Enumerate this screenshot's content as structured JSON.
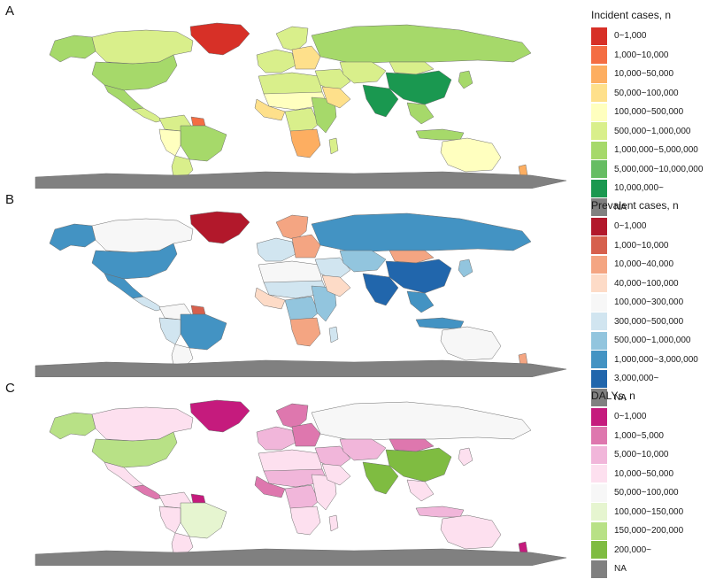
{
  "panels": [
    {
      "letter": "A",
      "legend_title": "Incident cases, n",
      "legend": [
        {
          "label": "0~1,000",
          "color": "#d73027"
        },
        {
          "label": "1,000~10,000",
          "color": "#f46d43"
        },
        {
          "label": "10,000~50,000",
          "color": "#fdae61"
        },
        {
          "label": "50,000~100,000",
          "color": "#fee08b"
        },
        {
          "label": "100,000~500,000",
          "color": "#ffffbf"
        },
        {
          "label": "500,000~1,000,000",
          "color": "#d9ef8b"
        },
        {
          "label": "1,000,000~5,000,000",
          "color": "#a6d96a"
        },
        {
          "label": "5,000,000~10,000,000",
          "color": "#66bd63"
        },
        {
          "label": "10,000,000~",
          "color": "#1a9850"
        },
        {
          "label": "NA",
          "color": "#808080"
        }
      ],
      "regions": {
        "greenland": "#d73027",
        "alaska": "#a6d96a",
        "canada": "#d9ef8b",
        "usa": "#a6d96a",
        "mexico": "#a6d96a",
        "central_am": "#d9ef8b",
        "north_sa": "#d9ef8b",
        "brazil": "#a6d96a",
        "west_sa": "#ffffbf",
        "argentina": "#d9ef8b",
        "guiana": "#f46d43",
        "scandinavia": "#d9ef8b",
        "w_europe": "#d9ef8b",
        "e_europe": "#fee08b",
        "russia": "#a6d96a",
        "n_africa": "#d9ef8b",
        "sahel": "#ffffbf",
        "w_africa": "#fee08b",
        "c_africa": "#d9ef8b",
        "e_africa": "#a6d96a",
        "s_africa": "#fdae61",
        "madagascar": "#d9ef8b",
        "middle_east": "#d9ef8b",
        "arabia": "#fee08b",
        "c_asia": "#d9ef8b",
        "india": "#1a9850",
        "china": "#1a9850",
        "mongolia": "#d9ef8b",
        "se_asia": "#a6d96a",
        "indonesia": "#a6d96a",
        "japan": "#a6d96a",
        "australia": "#ffffbf",
        "nz": "#fdae61",
        "antarctica": "#808080"
      }
    },
    {
      "letter": "B",
      "legend_title": "Prevalent cases, n",
      "legend": [
        {
          "label": "0~1,000",
          "color": "#b2182b"
        },
        {
          "label": "1,000~10,000",
          "color": "#d6604d"
        },
        {
          "label": "10,000~40,000",
          "color": "#f4a582"
        },
        {
          "label": "40,000~100,000",
          "color": "#fddbc7"
        },
        {
          "label": "100,000~300,000",
          "color": "#f7f7f7"
        },
        {
          "label": "300,000~500,000",
          "color": "#d1e5f0"
        },
        {
          "label": "500,000~1,000,000",
          "color": "#92c5de"
        },
        {
          "label": "1,000,000~3,000,000",
          "color": "#4393c3"
        },
        {
          "label": "3,000,000~",
          "color": "#2166ac"
        },
        {
          "label": "NA",
          "color": "#808080"
        }
      ],
      "regions": {
        "greenland": "#b2182b",
        "alaska": "#4393c3",
        "canada": "#f7f7f7",
        "usa": "#4393c3",
        "mexico": "#4393c3",
        "central_am": "#d1e5f0",
        "north_sa": "#f7f7f7",
        "brazil": "#4393c3",
        "west_sa": "#d1e5f0",
        "argentina": "#f7f7f7",
        "guiana": "#d6604d",
        "scandinavia": "#f4a582",
        "w_europe": "#d1e5f0",
        "e_europe": "#f4a582",
        "russia": "#4393c3",
        "n_africa": "#f7f7f7",
        "sahel": "#d1e5f0",
        "w_africa": "#fddbc7",
        "c_africa": "#92c5de",
        "e_africa": "#92c5de",
        "s_africa": "#f4a582",
        "madagascar": "#d1e5f0",
        "middle_east": "#d1e5f0",
        "arabia": "#fddbc7",
        "c_asia": "#92c5de",
        "india": "#2166ac",
        "china": "#2166ac",
        "mongolia": "#f4a582",
        "se_asia": "#4393c3",
        "indonesia": "#4393c3",
        "japan": "#92c5de",
        "australia": "#f7f7f7",
        "nz": "#f4a582",
        "antarctica": "#808080"
      }
    },
    {
      "letter": "C",
      "legend_title": "DALYs, n",
      "legend": [
        {
          "label": "0~1,000",
          "color": "#c51b7d"
        },
        {
          "label": "1,000~5,000",
          "color": "#de77ae"
        },
        {
          "label": "5,000~10,000",
          "color": "#f1b6da"
        },
        {
          "label": "10,000~50,000",
          "color": "#fde0ef"
        },
        {
          "label": "50,000~100,000",
          "color": "#f7f7f7"
        },
        {
          "label": "100,000~150,000",
          "color": "#e6f5d0"
        },
        {
          "label": "150,000~200,000",
          "color": "#b8e186"
        },
        {
          "label": "200,000~",
          "color": "#7fbc41"
        },
        {
          "label": "NA",
          "color": "#808080"
        }
      ],
      "regions": {
        "greenland": "#c51b7d",
        "alaska": "#b8e186",
        "canada": "#fde0ef",
        "usa": "#b8e186",
        "mexico": "#fde0ef",
        "central_am": "#de77ae",
        "north_sa": "#fde0ef",
        "brazil": "#e6f5d0",
        "west_sa": "#fde0ef",
        "argentina": "#fde0ef",
        "guiana": "#c51b7d",
        "scandinavia": "#de77ae",
        "w_europe": "#f1b6da",
        "e_europe": "#de77ae",
        "russia": "#f7f7f7",
        "n_africa": "#fde0ef",
        "sahel": "#f1b6da",
        "w_africa": "#de77ae",
        "c_africa": "#f1b6da",
        "e_africa": "#fde0ef",
        "s_africa": "#fde0ef",
        "madagascar": "#fde0ef",
        "middle_east": "#f1b6da",
        "arabia": "#fde0ef",
        "c_asia": "#f1b6da",
        "india": "#7fbc41",
        "china": "#7fbc41",
        "mongolia": "#de77ae",
        "se_asia": "#fde0ef",
        "indonesia": "#f1b6da",
        "japan": "#fde0ef",
        "australia": "#fde0ef",
        "nz": "#c51b7d",
        "antarctica": "#808080"
      }
    }
  ]
}
